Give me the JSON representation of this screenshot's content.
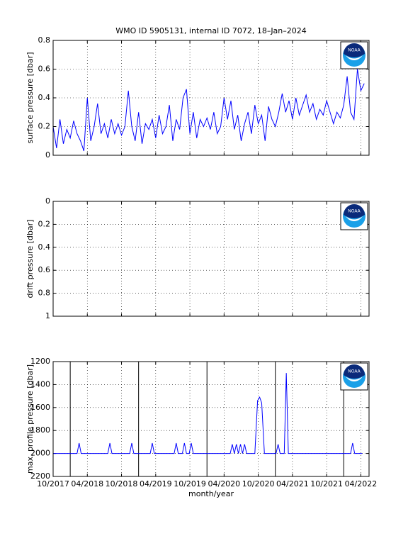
{
  "logo": "NOAA",
  "chart_data": [
    {
      "type": "line",
      "title": "WMO ID 5905131, internal ID 7072, 18–Jan–2024",
      "ylabel": "surface pressure [dbar]",
      "color": "#0000ff",
      "grid": true,
      "xlim": [
        2017.75,
        2022.37
      ],
      "xticks": [
        2017.75,
        2018.25,
        2018.75,
        2019.25,
        2019.75,
        2020.25,
        2020.75,
        2021.25,
        2021.75,
        2022.25
      ],
      "ylim": [
        0,
        0.8
      ],
      "yticks": [
        0,
        0.2,
        0.4,
        0.6,
        0.8
      ],
      "x": [
        2017.75,
        2017.8,
        2017.85,
        2017.9,
        2017.95,
        2018,
        2018.05,
        2018.1,
        2018.15,
        2018.2,
        2018.25,
        2018.3,
        2018.35,
        2018.4,
        2018.45,
        2018.5,
        2018.55,
        2018.6,
        2018.65,
        2018.7,
        2018.75,
        2018.8,
        2018.85,
        2018.9,
        2018.95,
        2019,
        2019.05,
        2019.1,
        2019.15,
        2019.2,
        2019.25,
        2019.3,
        2019.35,
        2019.4,
        2019.45,
        2019.5,
        2019.55,
        2019.6,
        2019.65,
        2019.7,
        2019.75,
        2019.8,
        2019.85,
        2019.9,
        2019.95,
        2020,
        2020.05,
        2020.1,
        2020.15,
        2020.2,
        2020.25,
        2020.3,
        2020.35,
        2020.4,
        2020.45,
        2020.5,
        2020.55,
        2020.6,
        2020.65,
        2020.7,
        2020.75,
        2020.8,
        2020.85,
        2020.9,
        2020.95,
        2021,
        2021.05,
        2021.1,
        2021.15,
        2021.2,
        2021.25,
        2021.3,
        2021.35,
        2021.4,
        2021.45,
        2021.5,
        2021.55,
        2021.6,
        2021.65,
        2021.7,
        2021.75,
        2021.8,
        2021.85,
        2021.9,
        2021.95,
        2022,
        2022.05,
        2022.1,
        2022.15,
        2022.2,
        2022.25,
        2022.3
      ],
      "values": [
        0.2,
        0.05,
        0.25,
        0.08,
        0.18,
        0.12,
        0.24,
        0.15,
        0.1,
        0.03,
        0.4,
        0.1,
        0.2,
        0.36,
        0.15,
        0.22,
        0.12,
        0.25,
        0.15,
        0.22,
        0.14,
        0.2,
        0.45,
        0.2,
        0.1,
        0.3,
        0.08,
        0.22,
        0.18,
        0.25,
        0.12,
        0.28,
        0.15,
        0.2,
        0.35,
        0.1,
        0.25,
        0.18,
        0.4,
        0.46,
        0.15,
        0.3,
        0.12,
        0.25,
        0.2,
        0.26,
        0.18,
        0.3,
        0.15,
        0.2,
        0.4,
        0.25,
        0.38,
        0.18,
        0.28,
        0.1,
        0.22,
        0.3,
        0.15,
        0.35,
        0.22,
        0.28,
        0.1,
        0.34,
        0.25,
        0.2,
        0.3,
        0.43,
        0.3,
        0.38,
        0.25,
        0.4,
        0.28,
        0.35,
        0.42,
        0.3,
        0.36,
        0.25,
        0.32,
        0.28,
        0.38,
        0.3,
        0.22,
        0.3,
        0.26,
        0.35,
        0.55,
        0.3,
        0.25,
        0.6,
        0.45,
        0.5
      ]
    },
    {
      "type": "line",
      "ylabel": "drift pressure [dbar]",
      "color": "#0000ff",
      "grid": true,
      "y_inverted": true,
      "xlim": [
        2017.75,
        2022.37
      ],
      "xticks": [
        2017.75,
        2018.25,
        2018.75,
        2019.25,
        2019.75,
        2020.25,
        2020.75,
        2021.25,
        2021.75,
        2022.25
      ],
      "ylim": [
        0,
        1
      ],
      "yticks": [
        0,
        0.2,
        0.4,
        0.6,
        0.8,
        1
      ]
    },
    {
      "type": "line",
      "ylabel": "max. profile pressure [dbar]",
      "xlabel": "month/year",
      "color": "#0000ff",
      "grid": true,
      "y_inverted": true,
      "xlim": [
        2017.75,
        2022.37
      ],
      "xticks": [
        {
          "value": 2017.75,
          "label": "10/2017"
        },
        {
          "value": 2018.25,
          "label": "04/2018"
        },
        {
          "value": 2018.75,
          "label": "10/2018"
        },
        {
          "value": 2019.25,
          "label": "04/2019"
        },
        {
          "value": 2019.75,
          "label": "10/2019"
        },
        {
          "value": 2020.25,
          "label": "04/2020"
        },
        {
          "value": 2020.75,
          "label": "10/2020"
        },
        {
          "value": 2021.25,
          "label": "04/2021"
        },
        {
          "value": 2021.75,
          "label": "10/2021"
        },
        {
          "value": 2022.25,
          "label": "04/2022"
        }
      ],
      "ylim": [
        1200,
        2200
      ],
      "yticks": [
        1200,
        1400,
        1600,
        1800,
        2000,
        2200
      ],
      "vlines": [
        2018,
        2019,
        2020,
        2021,
        2022
      ],
      "vline_color": "#000000",
      "x": [
        2017.75,
        2018.1,
        2018.13,
        2018.16,
        2018.55,
        2018.58,
        2018.61,
        2018.87,
        2018.9,
        2018.93,
        2019.17,
        2019.2,
        2019.23,
        2019.52,
        2019.55,
        2019.58,
        2019.64,
        2019.67,
        2019.7,
        2019.74,
        2019.77,
        2019.8,
        2020.34,
        2020.37,
        2020.4,
        2020.43,
        2020.46,
        2020.49,
        2020.52,
        2020.55,
        2020.58,
        2020.7,
        2020.74,
        2020.77,
        2020.8,
        2020.84,
        2021.01,
        2021.04,
        2021.07,
        2021.13,
        2021.16,
        2021.19,
        2022.1,
        2022.13,
        2022.16,
        2022.27
      ],
      "values": [
        2000,
        2000,
        1910,
        2000,
        2000,
        1910,
        2000,
        2000,
        1910,
        2000,
        2000,
        1910,
        2000,
        2000,
        1910,
        2000,
        2000,
        1910,
        2000,
        2000,
        1910,
        2000,
        2000,
        1920,
        2000,
        1920,
        2000,
        1920,
        2000,
        1920,
        2000,
        2000,
        1540,
        1510,
        1560,
        2000,
        2000,
        1920,
        2000,
        2000,
        1300,
        2000,
        2000,
        1910,
        2000,
        2000
      ]
    }
  ]
}
